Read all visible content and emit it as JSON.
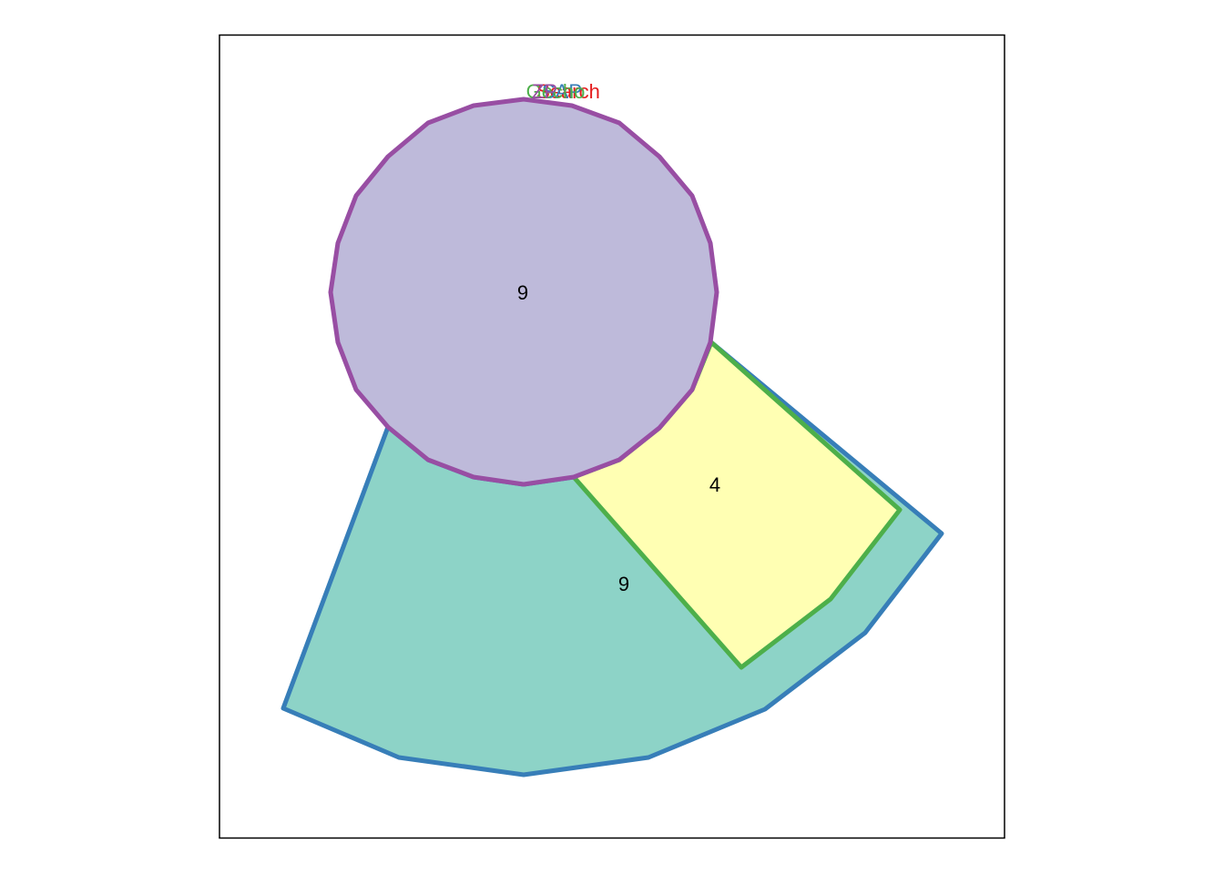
{
  "diagram": {
    "type": "venn",
    "sets": [
      {
        "id": "search",
        "label": "Search",
        "color": "#E41A1C"
      },
      {
        "id": "sap",
        "label": "SAP",
        "color": "#377EB8"
      },
      {
        "id": "gecho",
        "label": "Gecho",
        "color": "#4DAF4A"
      },
      {
        "id": "zp",
        "label": "ZP",
        "color": "#984EA3"
      }
    ],
    "regions": [
      {
        "id": "sap-only",
        "sets": [
          "sap"
        ],
        "count": "9",
        "fill": "#8DD3C7"
      },
      {
        "id": "sap-gecho",
        "sets": [
          "sap",
          "gecho"
        ],
        "count": "4",
        "fill": "#FFFFB3"
      },
      {
        "id": "zp-circle",
        "sets": [
          "zp"
        ],
        "count": "9",
        "fill": "#BEBADA"
      }
    ]
  }
}
